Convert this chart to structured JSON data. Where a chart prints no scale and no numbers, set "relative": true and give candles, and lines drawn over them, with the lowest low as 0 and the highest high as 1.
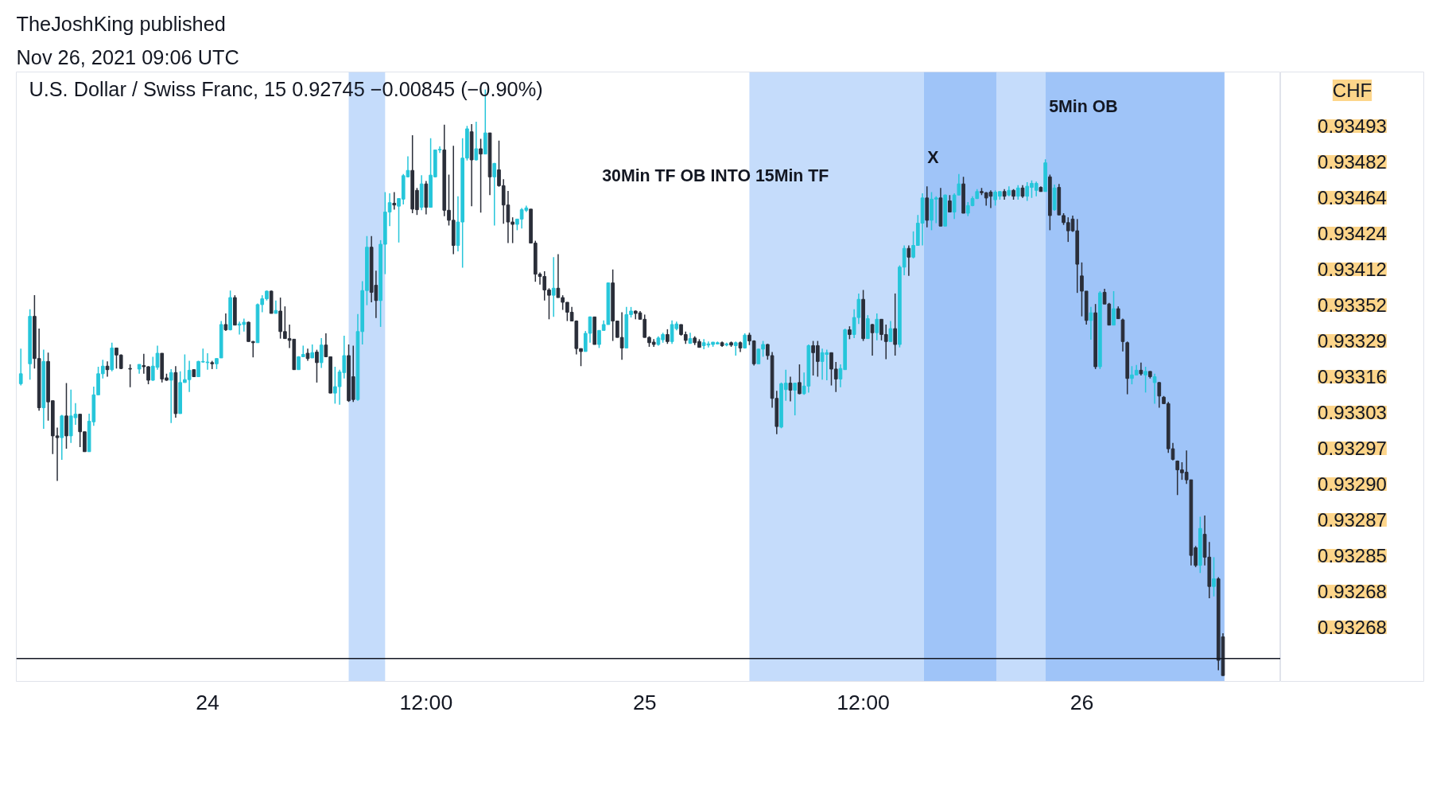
{
  "chart_data": {
    "type": "candlestick",
    "title": "U.S. Dollar / Swiss Franc, 15  0.92745  −0.00845 (−0.90%)",
    "subtitle": "TheJoshKing published\nNov 26, 2021 09:06 UTC",
    "relative": true,
    "tick_labels": "x",
    "xlim": [
      "2021-11-23T13:30",
      "2021-11-26T10:55"
    ],
    "xticks": [
      {
        "value": "2021-11-24T00:00",
        "label": "24"
      },
      {
        "value": "2021-11-24T12:00",
        "label": "12:00"
      },
      {
        "value": "2021-11-25T00:00",
        "label": "25"
      },
      {
        "value": "2021-11-25T12:00",
        "label": "12:00"
      },
      {
        "value": "2021-11-26T00:00",
        "label": "26"
      }
    ],
    "x": [
      "2021-11-23T13:45",
      "2021-11-23T14:15",
      "2021-11-23T14:30",
      "2021-11-23T14:45",
      "2021-11-23T15:00",
      "2021-11-23T15:15",
      "2021-11-23T15:30",
      "2021-11-23T15:45",
      "2021-11-23T16:00",
      "2021-11-23T16:15",
      "2021-11-23T16:30",
      "2021-11-23T16:45",
      "2021-11-23T17:00",
      "2021-11-23T17:15",
      "2021-11-23T17:30",
      "2021-11-23T17:45",
      "2021-11-23T18:00",
      "2021-11-23T18:15",
      "2021-11-23T18:30",
      "2021-11-23T18:45",
      "2021-11-23T19:00",
      "2021-11-23T19:15",
      "2021-11-23T19:45",
      "2021-11-23T20:15",
      "2021-11-23T20:30",
      "2021-11-23T20:45",
      "2021-11-23T21:00",
      "2021-11-23T21:15",
      "2021-11-23T21:30",
      "2021-11-23T21:45",
      "2021-11-23T22:00",
      "2021-11-23T22:15",
      "2021-11-23T22:30",
      "2021-11-23T22:45",
      "2021-11-23T23:00",
      "2021-11-23T23:15",
      "2021-11-23T23:30",
      "2021-11-23T23:45",
      "2021-11-24T00:00",
      "2021-11-24T00:15",
      "2021-11-24T00:30",
      "2021-11-24T00:45",
      "2021-11-24T01:00",
      "2021-11-24T01:15",
      "2021-11-24T01:30",
      "2021-11-24T01:45",
      "2021-11-24T02:00",
      "2021-11-24T02:15",
      "2021-11-24T02:30",
      "2021-11-24T02:45",
      "2021-11-24T03:00",
      "2021-11-24T03:15",
      "2021-11-24T03:30",
      "2021-11-24T03:45",
      "2021-11-24T04:00",
      "2021-11-24T04:15",
      "2021-11-24T04:30",
      "2021-11-24T04:45",
      "2021-11-24T05:00",
      "2021-11-24T05:15",
      "2021-11-24T05:30",
      "2021-11-24T05:45",
      "2021-11-24T06:00",
      "2021-11-24T06:15",
      "2021-11-24T06:30",
      "2021-11-24T06:45",
      "2021-11-24T07:00",
      "2021-11-24T07:15",
      "2021-11-24T07:30",
      "2021-11-24T07:45",
      "2021-11-24T08:00",
      "2021-11-24T08:15",
      "2021-11-24T08:30",
      "2021-11-24T08:45",
      "2021-11-24T09:00",
      "2021-11-24T09:15",
      "2021-11-24T09:30",
      "2021-11-24T09:45",
      "2021-11-24T10:00",
      "2021-11-24T10:15",
      "2021-11-24T10:30",
      "2021-11-24T10:45",
      "2021-11-24T11:00",
      "2021-11-24T11:15",
      "2021-11-24T11:30",
      "2021-11-24T11:45",
      "2021-11-24T12:00",
      "2021-11-24T12:15",
      "2021-11-24T12:30",
      "2021-11-24T12:45",
      "2021-11-24T13:00",
      "2021-11-24T13:15",
      "2021-11-24T13:30",
      "2021-11-24T13:45",
      "2021-11-24T14:00",
      "2021-11-24T14:15",
      "2021-11-24T14:30",
      "2021-11-24T14:45",
      "2021-11-24T15:00",
      "2021-11-24T15:15",
      "2021-11-24T15:30",
      "2021-11-24T15:45",
      "2021-11-24T16:00",
      "2021-11-24T16:15",
      "2021-11-24T16:30",
      "2021-11-24T16:45",
      "2021-11-24T17:00",
      "2021-11-24T17:15",
      "2021-11-24T17:30",
      "2021-11-24T17:45",
      "2021-11-24T18:00",
      "2021-11-24T18:15",
      "2021-11-24T18:30",
      "2021-11-24T18:45",
      "2021-11-24T19:00",
      "2021-11-24T19:15",
      "2021-11-24T19:30",
      "2021-11-24T19:45",
      "2021-11-24T20:00",
      "2021-11-24T20:15",
      "2021-11-24T20:30",
      "2021-11-24T20:45",
      "2021-11-24T21:00",
      "2021-11-24T21:15",
      "2021-11-24T21:30",
      "2021-11-24T21:45",
      "2021-11-24T22:00",
      "2021-11-24T22:15",
      "2021-11-24T22:30",
      "2021-11-24T22:45",
      "2021-11-24T23:00",
      "2021-11-24T23:15",
      "2021-11-24T23:30",
      "2021-11-24T23:45",
      "2021-11-25T00:00",
      "2021-11-25T00:15",
      "2021-11-25T00:30",
      "2021-11-25T00:45",
      "2021-11-25T01:00",
      "2021-11-25T01:15",
      "2021-11-25T01:30",
      "2021-11-25T01:45",
      "2021-11-25T02:00",
      "2021-11-25T02:15",
      "2021-11-25T02:30",
      "2021-11-25T02:45",
      "2021-11-25T03:00",
      "2021-11-25T03:15",
      "2021-11-25T03:30",
      "2021-11-25T03:45",
      "2021-11-25T04:00",
      "2021-11-25T04:15",
      "2021-11-25T04:30",
      "2021-11-25T04:45",
      "2021-11-25T05:00",
      "2021-11-25T05:15",
      "2021-11-25T05:30",
      "2021-11-25T05:45",
      "2021-11-25T06:00",
      "2021-11-25T06:15",
      "2021-11-25T06:30",
      "2021-11-25T06:45",
      "2021-11-25T07:00",
      "2021-11-25T07:15",
      "2021-11-25T07:30",
      "2021-11-25T07:45",
      "2021-11-25T08:00",
      "2021-11-25T08:15",
      "2021-11-25T08:30",
      "2021-11-25T08:45",
      "2021-11-25T09:00",
      "2021-11-25T09:15",
      "2021-11-25T09:30",
      "2021-11-25T09:45",
      "2021-11-25T10:00",
      "2021-11-25T10:15",
      "2021-11-25T10:30",
      "2021-11-25T10:45",
      "2021-11-25T11:00",
      "2021-11-25T11:15",
      "2021-11-25T11:30",
      "2021-11-25T11:45",
      "2021-11-25T12:00",
      "2021-11-25T12:15",
      "2021-11-25T12:30",
      "2021-11-25T12:45",
      "2021-11-25T13:00",
      "2021-11-25T13:15",
      "2021-11-25T13:30",
      "2021-11-25T13:45",
      "2021-11-25T14:00",
      "2021-11-25T14:15",
      "2021-11-25T14:30",
      "2021-11-25T14:45",
      "2021-11-25T15:00",
      "2021-11-25T15:15",
      "2021-11-25T15:30",
      "2021-11-25T15:45",
      "2021-11-25T16:00",
      "2021-11-25T16:15",
      "2021-11-25T16:30",
      "2021-11-25T16:45",
      "2021-11-25T17:00",
      "2021-11-25T17:15",
      "2021-11-25T17:30",
      "2021-11-25T17:45",
      "2021-11-25T18:00",
      "2021-11-25T18:15",
      "2021-11-25T18:30",
      "2021-11-25T18:45",
      "2021-11-25T19:00",
      "2021-11-25T19:15",
      "2021-11-25T19:30",
      "2021-11-25T19:45",
      "2021-11-25T20:00",
      "2021-11-25T20:15",
      "2021-11-25T20:30",
      "2021-11-25T20:45",
      "2021-11-25T21:00",
      "2021-11-25T21:15",
      "2021-11-25T21:30",
      "2021-11-25T21:45",
      "2021-11-25T22:00",
      "2021-11-25T22:15",
      "2021-11-25T22:30",
      "2021-11-25T22:45",
      "2021-11-25T23:00",
      "2021-11-25T23:15",
      "2021-11-25T23:30",
      "2021-11-25T23:45",
      "2021-11-26T00:00",
      "2021-11-26T00:15",
      "2021-11-26T00:30",
      "2021-11-26T00:45",
      "2021-11-26T01:00",
      "2021-11-26T01:15",
      "2021-11-26T01:30",
      "2021-11-26T01:45",
      "2021-11-26T02:00",
      "2021-11-26T02:15",
      "2021-11-26T02:30",
      "2021-11-26T02:45",
      "2021-11-26T03:00",
      "2021-11-26T03:15",
      "2021-11-26T03:30",
      "2021-11-26T03:45",
      "2021-11-26T04:00",
      "2021-11-26T04:15",
      "2021-11-26T04:30",
      "2021-11-26T04:45",
      "2021-11-26T05:00",
      "2021-11-26T05:15",
      "2021-11-26T05:30",
      "2021-11-26T05:45",
      "2021-11-26T06:00",
      "2021-11-26T06:15",
      "2021-11-26T06:30",
      "2021-11-26T06:45",
      "2021-11-26T07:00",
      "2021-11-26T07:15",
      "2021-11-26T07:30",
      "2021-11-26T07:45"
    ],
    "ohlc": [
      [
        0.498,
        0.558,
        0.495,
        0.515
      ],
      [
        0.532,
        0.625,
        0.505,
        0.613
      ],
      [
        0.613,
        0.649,
        0.524,
        0.541
      ],
      [
        0.541,
        0.592,
        0.452,
        0.457
      ],
      [
        0.457,
        0.556,
        0.421,
        0.536
      ],
      [
        0.536,
        0.551,
        0.435,
        0.467
      ],
      [
        0.469,
        0.469,
        0.378,
        0.409
      ],
      [
        0.409,
        0.423,
        0.332,
        0.406
      ],
      [
        0.406,
        0.445,
        0.368,
        0.443
      ],
      [
        0.443,
        0.499,
        0.387,
        0.409
      ],
      [
        0.409,
        0.488,
        0.397,
        0.443
      ],
      [
        0.44,
        0.465,
        0.428,
        0.446
      ],
      [
        0.446,
        0.446,
        0.39,
        0.416
      ],
      [
        0.416,
        0.416,
        0.382,
        0.382
      ],
      [
        0.382,
        0.447,
        0.382,
        0.434
      ],
      [
        0.433,
        0.493,
        0.426,
        0.479
      ],
      [
        0.479,
        0.527,
        0.479,
        0.515
      ],
      [
        0.515,
        0.539,
        0.507,
        0.528
      ],
      [
        0.528,
        0.536,
        0.51,
        0.522
      ],
      [
        0.522,
        0.568,
        0.519,
        0.559
      ],
      [
        0.559,
        0.559,
        0.524,
        0.547
      ],
      [
        0.547,
        0.548,
        0.523,
        0.524
      ],
      [
        0.524,
        0.531,
        0.492,
        0.523
      ],
      [
        0.523,
        0.531,
        0.515,
        0.531
      ],
      [
        0.529,
        0.549,
        0.515,
        0.527
      ],
      [
        0.527,
        0.528,
        0.497,
        0.504
      ],
      [
        0.504,
        0.544,
        0.503,
        0.528
      ],
      [
        0.526,
        0.563,
        0.522,
        0.55
      ],
      [
        0.55,
        0.55,
        0.5,
        0.506
      ],
      [
        0.508,
        0.515,
        0.503,
        0.504
      ],
      [
        0.504,
        0.523,
        0.431,
        0.517
      ],
      [
        0.517,
        0.528,
        0.44,
        0.447
      ],
      [
        0.447,
        0.519,
        0.447,
        0.5
      ],
      [
        0.5,
        0.548,
        0.5,
        0.505
      ],
      [
        0.505,
        0.537,
        0.484,
        0.521
      ],
      [
        0.522,
        0.522,
        0.51,
        0.51
      ],
      [
        0.51,
        0.537,
        0.51,
        0.536
      ],
      [
        0.535,
        0.558,
        0.534,
        0.536
      ],
      [
        0.534,
        0.55,
        0.522,
        0.535
      ],
      [
        0.534,
        0.537,
        0.523,
        0.532
      ],
      [
        0.532,
        0.541,
        0.523,
        0.541
      ],
      [
        0.542,
        0.605,
        0.542,
        0.599
      ],
      [
        0.599,
        0.618,
        0.588,
        0.59
      ],
      [
        0.59,
        0.657,
        0.589,
        0.645
      ],
      [
        0.645,
        0.649,
        0.598,
        0.598
      ],
      [
        0.598,
        0.604,
        0.582,
        0.6
      ],
      [
        0.599,
        0.609,
        0.587,
        0.603
      ],
      [
        0.603,
        0.604,
        0.57,
        0.57
      ],
      [
        0.57,
        0.571,
        0.543,
        0.568
      ],
      [
        0.568,
        0.635,
        0.568,
        0.633
      ],
      [
        0.633,
        0.649,
        0.62,
        0.643
      ],
      [
        0.643,
        0.657,
        0.64,
        0.656
      ],
      [
        0.656,
        0.657,
        0.618,
        0.618
      ],
      [
        0.618,
        0.64,
        0.618,
        0.623
      ],
      [
        0.622,
        0.645,
        0.575,
        0.587
      ],
      [
        0.587,
        0.63,
        0.575,
        0.575
      ],
      [
        0.575,
        0.599,
        0.559,
        0.572
      ],
      [
        0.574,
        0.574,
        0.522,
        0.522
      ],
      [
        0.522,
        0.545,
        0.522,
        0.544
      ],
      [
        0.544,
        0.563,
        0.544,
        0.548
      ],
      [
        0.55,
        0.558,
        0.537,
        0.541
      ],
      [
        0.542,
        0.565,
        0.542,
        0.551
      ],
      [
        0.552,
        0.556,
        0.5,
        0.534
      ],
      [
        0.534,
        0.576,
        0.525,
        0.564
      ],
      [
        0.564,
        0.584,
        0.544,
        0.544
      ],
      [
        0.544,
        0.544,
        0.482,
        0.482
      ],
      [
        0.482,
        0.527,
        0.464,
        0.493
      ],
      [
        0.493,
        0.522,
        0.462,
        0.518
      ],
      [
        0.517,
        0.58,
        0.507,
        0.546
      ],
      [
        0.546,
        0.565,
        0.467,
        0.469
      ],
      [
        0.51,
        0.563,
        0.467,
        0.471
      ],
      [
        0.471,
        0.617,
        0.469,
        0.587
      ],
      [
        0.587,
        0.673,
        0.565,
        0.657
      ],
      [
        0.657,
        0.75,
        0.632,
        0.731
      ],
      [
        0.731,
        0.75,
        0.637,
        0.654
      ],
      [
        0.666,
        0.691,
        0.61,
        0.64
      ],
      [
        0.64,
        0.743,
        0.595,
        0.736
      ],
      [
        0.736,
        0.825,
        0.685,
        0.791
      ],
      [
        0.791,
        0.823,
        0.767,
        0.807
      ],
      [
        0.806,
        0.825,
        0.795,
        0.803
      ],
      [
        0.801,
        0.814,
        0.739,
        0.814
      ],
      [
        0.813,
        0.856,
        0.804,
        0.853
      ],
      [
        0.851,
        0.886,
        0.85,
        0.862
      ],
      [
        0.862,
        0.922,
        0.789,
        0.796
      ],
      [
        0.828,
        0.832,
        0.786,
        0.795
      ],
      [
        0.799,
        0.854,
        0.794,
        0.839
      ],
      [
        0.839,
        0.844,
        0.787,
        0.799
      ],
      [
        0.799,
        0.917,
        0.799,
        0.854
      ],
      [
        0.851,
        0.897,
        0.85,
        0.897
      ],
      [
        0.897,
        0.903,
        0.892,
        0.898
      ],
      [
        0.897,
        0.94,
        0.784,
        0.794
      ],
      [
        0.794,
        0.855,
        0.768,
        0.777
      ],
      [
        0.777,
        0.904,
        0.719,
        0.734
      ],
      [
        0.734,
        0.818,
        0.724,
        0.774
      ],
      [
        0.774,
        0.917,
        0.696,
        0.883
      ],
      [
        0.883,
        0.938,
        0.879,
        0.933
      ],
      [
        0.928,
        0.941,
        0.801,
        0.88
      ],
      [
        0.88,
        0.945,
        0.879,
        0.899
      ],
      [
        0.899,
        0.916,
        0.79,
        0.89
      ],
      [
        0.89,
        1.0,
        0.89,
        0.926
      ],
      [
        0.926,
        0.926,
        0.82,
        0.851
      ],
      [
        0.851,
        0.875,
        0.768,
        0.874
      ],
      [
        0.863,
        0.913,
        0.834,
        0.836
      ],
      [
        0.836,
        0.847,
        0.771,
        0.803
      ],
      [
        0.803,
        0.827,
        0.738,
        0.774
      ],
      [
        0.774,
        0.782,
        0.738,
        0.77
      ],
      [
        0.77,
        0.779,
        0.76,
        0.779
      ],
      [
        0.779,
        0.798,
        0.763,
        0.795
      ],
      [
        0.794,
        0.802,
        0.791,
        0.798
      ],
      [
        0.796,
        0.796,
        0.738,
        0.738
      ],
      [
        0.738,
        0.742,
        0.672,
        0.685
      ],
      [
        0.685,
        0.688,
        0.667,
        0.681
      ],
      [
        0.681,
        0.69,
        0.64,
        0.658
      ],
      [
        0.658,
        0.661,
        0.608,
        0.649
      ],
      [
        0.649,
        0.714,
        0.612,
        0.661
      ],
      [
        0.661,
        0.719,
        0.645,
        0.645
      ],
      [
        0.645,
        0.649,
        0.624,
        0.637
      ],
      [
        0.637,
        0.637,
        0.605,
        0.62
      ],
      [
        0.62,
        0.629,
        0.605,
        0.605
      ],
      [
        0.605,
        0.606,
        0.548,
        0.558
      ],
      [
        0.558,
        0.558,
        0.528,
        0.553
      ],
      [
        0.553,
        0.588,
        0.553,
        0.584
      ],
      [
        0.584,
        0.613,
        0.568,
        0.612
      ],
      [
        0.612,
        0.612,
        0.565,
        0.565
      ],
      [
        0.565,
        0.589,
        0.559,
        0.589
      ],
      [
        0.589,
        0.606,
        0.589,
        0.599
      ],
      [
        0.599,
        0.671,
        0.599,
        0.67
      ],
      [
        0.67,
        0.693,
        0.571,
        0.605
      ],
      [
        0.605,
        0.605,
        0.577,
        0.577
      ],
      [
        0.577,
        0.62,
        0.539,
        0.559
      ],
      [
        0.559,
        0.629,
        0.559,
        0.616
      ],
      [
        0.616,
        0.629,
        0.611,
        0.622
      ],
      [
        0.622,
        0.623,
        0.608,
        0.618
      ],
      [
        0.619,
        0.622,
        0.608,
        0.608
      ],
      [
        0.608,
        0.616,
        0.577,
        0.577
      ],
      [
        0.577,
        0.579,
        0.561,
        0.568
      ],
      [
        0.569,
        0.574,
        0.561,
        0.565
      ],
      [
        0.565,
        0.579,
        0.563,
        0.576
      ],
      [
        0.573,
        0.585,
        0.568,
        0.582
      ],
      [
        0.582,
        0.591,
        0.566,
        0.57
      ],
      [
        0.57,
        0.606,
        0.566,
        0.599
      ],
      [
        0.592,
        0.604,
        0.589,
        0.6
      ],
      [
        0.599,
        0.599,
        0.58,
        0.582
      ],
      [
        0.582,
        0.587,
        0.566,
        0.572
      ],
      [
        0.567,
        0.585,
        0.566,
        0.575
      ],
      [
        0.576,
        0.579,
        0.564,
        0.568
      ],
      [
        0.57,
        0.574,
        0.56,
        0.56
      ],
      [
        0.563,
        0.574,
        0.557,
        0.568
      ],
      [
        0.564,
        0.57,
        0.56,
        0.566
      ],
      [
        0.565,
        0.569,
        0.561,
        0.569
      ],
      [
        0.566,
        0.57,
        0.565,
        0.568
      ],
      [
        0.568,
        0.57,
        0.561,
        0.563
      ],
      [
        0.564,
        0.568,
        0.562,
        0.566
      ],
      [
        0.568,
        0.57,
        0.561,
        0.564
      ],
      [
        0.563,
        0.57,
        0.546,
        0.568
      ],
      [
        0.568,
        0.57,
        0.552,
        0.559
      ],
      [
        0.559,
        0.584,
        0.558,
        0.581
      ],
      [
        0.581,
        0.585,
        0.564,
        0.571
      ],
      [
        0.571,
        0.572,
        0.529,
        0.532
      ],
      [
        0.532,
        0.558,
        0.532,
        0.557
      ],
      [
        0.557,
        0.571,
        0.544,
        0.565
      ],
      [
        0.565,
        0.566,
        0.539,
        0.546
      ],
      [
        0.546,
        0.552,
        0.457,
        0.473
      ],
      [
        0.473,
        0.486,
        0.412,
        0.425
      ],
      [
        0.424,
        0.5,
        0.422,
        0.498
      ],
      [
        0.488,
        0.522,
        0.469,
        0.499
      ],
      [
        0.499,
        0.51,
        0.468,
        0.487
      ],
      [
        0.487,
        0.499,
        0.444,
        0.499
      ],
      [
        0.5,
        0.531,
        0.48,
        0.481
      ],
      [
        0.481,
        0.517,
        0.479,
        0.494
      ],
      [
        0.494,
        0.565,
        0.483,
        0.563
      ],
      [
        0.563,
        0.571,
        0.512,
        0.551
      ],
      [
        0.563,
        0.571,
        0.51,
        0.536
      ],
      [
        0.536,
        0.558,
        0.505,
        0.551
      ],
      [
        0.548,
        0.556,
        0.504,
        0.551
      ],
      [
        0.551,
        0.551,
        0.495,
        0.523
      ],
      [
        0.523,
        0.535,
        0.484,
        0.506
      ],
      [
        0.506,
        0.531,
        0.492,
        0.524
      ],
      [
        0.522,
        0.592,
        0.522,
        0.59
      ],
      [
        0.59,
        0.596,
        0.574,
        0.582
      ],
      [
        0.582,
        0.625,
        0.576,
        0.611
      ],
      [
        0.611,
        0.652,
        0.6,
        0.642
      ],
      [
        0.642,
        0.658,
        0.571,
        0.575
      ],
      [
        0.575,
        0.615,
        0.575,
        0.609
      ],
      [
        0.599,
        0.6,
        0.546,
        0.585
      ],
      [
        0.585,
        0.618,
        0.572,
        0.608
      ],
      [
        0.608,
        0.608,
        0.572,
        0.582
      ],
      [
        0.582,
        0.599,
        0.54,
        0.57
      ],
      [
        0.57,
        0.605,
        0.57,
        0.592
      ],
      [
        0.592,
        0.652,
        0.546,
        0.565
      ],
      [
        0.565,
        0.7,
        0.56,
        0.697
      ],
      [
        0.697,
        0.734,
        0.683,
        0.729
      ],
      [
        0.729,
        0.734,
        0.682,
        0.714
      ],
      [
        0.714,
        0.758,
        0.712,
        0.734
      ],
      [
        0.734,
        0.786,
        0.734,
        0.772
      ],
      [
        0.772,
        0.823,
        0.734,
        0.815
      ],
      [
        0.815,
        0.835,
        0.765,
        0.777
      ],
      [
        0.777,
        0.825,
        0.76,
        0.813
      ],
      [
        0.813,
        0.818,
        0.772,
        0.815
      ],
      [
        0.815,
        0.832,
        0.767,
        0.767
      ],
      [
        0.767,
        0.821,
        0.767,
        0.82
      ],
      [
        0.81,
        0.82,
        0.791,
        0.791
      ],
      [
        0.791,
        0.823,
        0.779,
        0.82
      ],
      [
        0.82,
        0.856,
        0.82,
        0.839
      ],
      [
        0.839,
        0.851,
        0.789,
        0.789
      ],
      [
        0.789,
        0.808,
        0.784,
        0.802
      ],
      [
        0.802,
        0.818,
        0.801,
        0.814
      ],
      [
        0.814,
        0.83,
        0.813,
        0.826
      ],
      [
        0.826,
        0.832,
        0.82,
        0.824
      ],
      [
        0.824,
        0.825,
        0.802,
        0.815
      ],
      [
        0.825,
        0.828,
        0.798,
        0.818
      ],
      [
        0.812,
        0.828,
        0.802,
        0.825
      ],
      [
        0.818,
        0.826,
        0.812,
        0.826
      ],
      [
        0.826,
        0.83,
        0.812,
        0.818
      ],
      [
        0.82,
        0.835,
        0.818,
        0.828
      ],
      [
        0.828,
        0.83,
        0.812,
        0.818
      ],
      [
        0.818,
        0.837,
        0.812,
        0.832
      ],
      [
        0.832,
        0.837,
        0.815,
        0.818
      ],
      [
        0.818,
        0.842,
        0.81,
        0.835
      ],
      [
        0.833,
        0.845,
        0.815,
        0.84
      ],
      [
        0.828,
        0.843,
        0.818,
        0.84
      ],
      [
        0.833,
        0.835,
        0.826,
        0.826
      ],
      [
        0.826,
        0.881,
        0.826,
        0.875
      ],
      [
        0.851,
        0.855,
        0.76,
        0.785
      ],
      [
        0.795,
        0.838,
        0.793,
        0.832
      ],
      [
        0.833,
        0.839,
        0.786,
        0.786
      ],
      [
        0.785,
        0.789,
        0.769,
        0.773
      ],
      [
        0.773,
        0.782,
        0.74,
        0.759
      ],
      [
        0.779,
        0.785,
        0.757,
        0.759
      ],
      [
        0.759,
        0.779,
        0.653,
        0.702
      ],
      [
        0.682,
        0.705,
        0.613,
        0.656
      ],
      [
        0.656,
        0.656,
        0.599,
        0.606
      ],
      [
        0.606,
        0.629,
        0.573,
        0.619
      ],
      [
        0.619,
        0.634,
        0.523,
        0.527
      ],
      [
        0.527,
        0.656,
        0.523,
        0.653
      ],
      [
        0.654,
        0.66,
        0.634,
        0.634
      ],
      [
        0.634,
        0.636,
        0.598,
        0.598
      ],
      [
        0.598,
        0.656,
        0.598,
        0.626
      ],
      [
        0.626,
        0.63,
        0.609,
        0.609
      ],
      [
        0.607,
        0.609,
        0.553,
        0.57
      ],
      [
        0.568,
        0.57,
        0.48,
        0.507
      ],
      [
        0.507,
        0.528,
        0.497,
        0.513
      ],
      [
        0.513,
        0.53,
        0.513,
        0.521
      ],
      [
        0.521,
        0.534,
        0.512,
        0.515
      ],
      [
        0.513,
        0.527,
        0.483,
        0.519
      ],
      [
        0.519,
        0.519,
        0.507,
        0.51
      ],
      [
        0.5,
        0.515,
        0.464,
        0.51
      ],
      [
        0.5,
        0.501,
        0.457,
        0.477
      ],
      [
        0.475,
        0.477,
        0.464,
        0.464
      ],
      [
        0.464,
        0.467,
        0.38,
        0.387
      ],
      [
        0.387,
        0.397,
        0.367,
        0.369
      ],
      [
        0.366,
        0.367,
        0.308,
        0.351
      ],
      [
        0.351,
        0.364,
        0.334,
        0.346
      ],
      [
        0.347,
        0.384,
        0.327,
        0.334
      ],
      [
        0.334,
        0.334,
        0.188,
        0.205
      ],
      [
        0.218,
        0.221,
        0.185,
        0.188
      ],
      [
        0.188,
        0.271,
        0.175,
        0.251
      ],
      [
        0.241,
        0.273,
        0.188,
        0.202
      ],
      [
        0.202,
        0.228,
        0.132,
        0.152
      ],
      [
        0.152,
        0.202,
        0.135,
        0.165
      ],
      [
        0.165,
        0.168,
        0.009,
        0.026
      ],
      [
        0.066,
        0.072,
        0.0,
        0.0
      ]
    ],
    "bands": [
      {
        "axis": "x",
        "from": "2021-11-24T07:45",
        "to": "2021-11-24T09:45",
        "color": "#c5dcfb"
      },
      {
        "axis": "x",
        "from": "2021-11-25T05:45",
        "to": "2021-11-25T15:20",
        "color": "#c5dcfb"
      },
      {
        "axis": "x",
        "from": "2021-11-25T15:20",
        "to": "2021-11-25T19:20",
        "color": "#9fc4f8"
      },
      {
        "axis": "x",
        "from": "2021-11-25T19:20",
        "to": "2021-11-25T22:00",
        "color": "#c5dcfb"
      },
      {
        "axis": "x",
        "from": "2021-11-25T22:00",
        "to": "2021-11-26T07:50",
        "color": "#9fc4f8"
      }
    ],
    "ref_lines": [
      {
        "axis": "y",
        "value": 0.029,
        "color": "#131722"
      }
    ],
    "annotations": [
      "30Min TF OB INTO 15Min TF",
      "X",
      "5Min OB",
      "CHF",
      "0.93493",
      "0.93482",
      "0.93464",
      "0.93424",
      "0.93412",
      "0.93352",
      "0.93329",
      "0.93316",
      "0.93303",
      "0.93297",
      "0.93290",
      "0.93287",
      "0.93285",
      "0.93268",
      "0.93268"
    ]
  }
}
